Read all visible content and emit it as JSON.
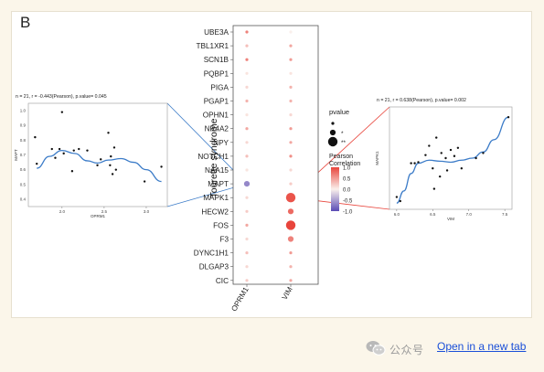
{
  "panel_letter": "B",
  "footer": {
    "watermark": "公众号",
    "new_tab_label": "Open in a new tab"
  },
  "colors": {
    "positive": "#e8453c",
    "negative": "#5a4bb5",
    "neutral": "#f6dcd6",
    "fit": "#3c7cc8"
  },
  "chart_data": [
    {
      "type": "scatter",
      "panel": "left",
      "title": "n = 21, r = -0.443(Pearson), p.value= 0.045",
      "xlabel": "OPRM1",
      "ylabel": "MAPT",
      "xlim": [
        1.6,
        3.25
      ],
      "ylim": [
        0.35,
        1.05
      ],
      "x_ticks": [
        "2.0",
        "2.5",
        "3.0"
      ],
      "y_ticks": [
        "0.4",
        "0.5",
        "0.6",
        "0.7",
        "0.8",
        "0.9",
        "1.0"
      ],
      "points": [
        [
          1.68,
          0.82
        ],
        [
          1.7,
          0.64
        ],
        [
          1.88,
          0.74
        ],
        [
          1.92,
          0.68
        ],
        [
          1.97,
          0.74
        ],
        [
          2.0,
          0.99
        ],
        [
          2.02,
          0.71
        ],
        [
          2.12,
          0.59
        ],
        [
          2.14,
          0.73
        ],
        [
          2.2,
          0.74
        ],
        [
          2.3,
          0.73
        ],
        [
          2.42,
          0.63
        ],
        [
          2.46,
          0.67
        ],
        [
          2.55,
          0.85
        ],
        [
          2.57,
          0.63
        ],
        [
          2.58,
          0.69
        ],
        [
          2.6,
          0.57
        ],
        [
          2.62,
          0.75
        ],
        [
          2.64,
          0.6
        ],
        [
          2.98,
          0.52
        ],
        [
          3.18,
          0.62
        ]
      ],
      "fit": [
        [
          1.7,
          0.61
        ],
        [
          1.85,
          0.69
        ],
        [
          2.0,
          0.73
        ],
        [
          2.15,
          0.71
        ],
        [
          2.3,
          0.66
        ],
        [
          2.42,
          0.645
        ],
        [
          2.55,
          0.665
        ],
        [
          2.7,
          0.675
        ],
        [
          2.85,
          0.65
        ],
        [
          3.0,
          0.6
        ],
        [
          3.18,
          0.52
        ]
      ]
    },
    {
      "type": "scatter",
      "panel": "center",
      "ylabel": "Tourette syndrome",
      "categories": [
        "OPRM1",
        "VIM"
      ],
      "genes": [
        "UBE3A",
        "TBL1XR1",
        "SCN1B",
        "PQBP1",
        "PIGA",
        "PGAP1",
        "OPHN1",
        "NR4A2",
        "NPY",
        "NOTCH1",
        "NAA15",
        "MAPT",
        "MAPK1",
        "HECW2",
        "FOS",
        "F3",
        "DYNC1H1",
        "DLGAP3",
        "CIC"
      ],
      "series": [
        {
          "name": "OPRM1",
          "correlation": [
            0.45,
            0.2,
            0.45,
            0.05,
            0.1,
            0.25,
            0.05,
            0.3,
            0.1,
            0.2,
            0.05,
            -0.44,
            0.1,
            0.15,
            0.3,
            0.1,
            0.2,
            0.1,
            0.15
          ],
          "pvalue_level": [
            0,
            0,
            0,
            0,
            0,
            0,
            0,
            0,
            0,
            0,
            0,
            1,
            0,
            0,
            0,
            0,
            0,
            0,
            0
          ]
        },
        {
          "name": "VIM",
          "correlation": [
            0.0,
            0.3,
            0.35,
            0.05,
            0.25,
            0.25,
            0.1,
            0.35,
            0.3,
            0.4,
            0.1,
            0.15,
            0.64,
            0.55,
            0.7,
            0.45,
            0.35,
            0.25,
            0.3
          ],
          "pvalue_level": [
            0,
            0,
            0,
            0,
            0,
            0,
            0,
            0,
            0,
            0,
            0,
            0,
            2,
            1,
            2,
            1,
            0,
            0,
            0
          ]
        }
      ],
      "legend_size": {
        "title": "pvalue",
        "labels": [
          "",
          "*",
          "**"
        ]
      },
      "legend_color": {
        "title": "Pearson\nCorrelation",
        "ticks": [
          "1.0",
          "0.5",
          "0.0",
          "-0.5",
          "-1.0"
        ],
        "range": [
          -1,
          1
        ]
      }
    },
    {
      "type": "scatter",
      "panel": "right",
      "title": "n = 21, r = 0.638(Pearson), p.value= 0.002",
      "xlabel": "VIM",
      "ylabel": "MAPK1",
      "xlim": [
        5.9,
        7.6
      ],
      "ylim": [
        0.1,
        1.1
      ],
      "x_ticks": [
        "6.0",
        "6.5",
        "7.0",
        "7.5"
      ],
      "y_ticks": [],
      "points": [
        [
          6.0,
          0.22
        ],
        [
          6.05,
          0.18
        ],
        [
          6.2,
          0.55
        ],
        [
          6.25,
          0.55
        ],
        [
          6.3,
          0.56
        ],
        [
          6.4,
          0.63
        ],
        [
          6.45,
          0.72
        ],
        [
          6.5,
          0.5
        ],
        [
          6.52,
          0.3
        ],
        [
          6.55,
          0.8
        ],
        [
          6.6,
          0.42
        ],
        [
          6.62,
          0.65
        ],
        [
          6.68,
          0.6
        ],
        [
          6.7,
          0.48
        ],
        [
          6.75,
          0.68
        ],
        [
          6.8,
          0.62
        ],
        [
          6.85,
          0.7
        ],
        [
          6.9,
          0.5
        ],
        [
          7.1,
          0.6
        ],
        [
          7.2,
          0.65
        ],
        [
          7.55,
          1.0
        ]
      ],
      "fit": [
        [
          6.0,
          0.16
        ],
        [
          6.1,
          0.28
        ],
        [
          6.2,
          0.45
        ],
        [
          6.3,
          0.55
        ],
        [
          6.45,
          0.58
        ],
        [
          6.6,
          0.57
        ],
        [
          6.75,
          0.56
        ],
        [
          6.9,
          0.58
        ],
        [
          7.05,
          0.6
        ],
        [
          7.2,
          0.66
        ],
        [
          7.35,
          0.78
        ],
        [
          7.55,
          1.0
        ]
      ]
    }
  ]
}
